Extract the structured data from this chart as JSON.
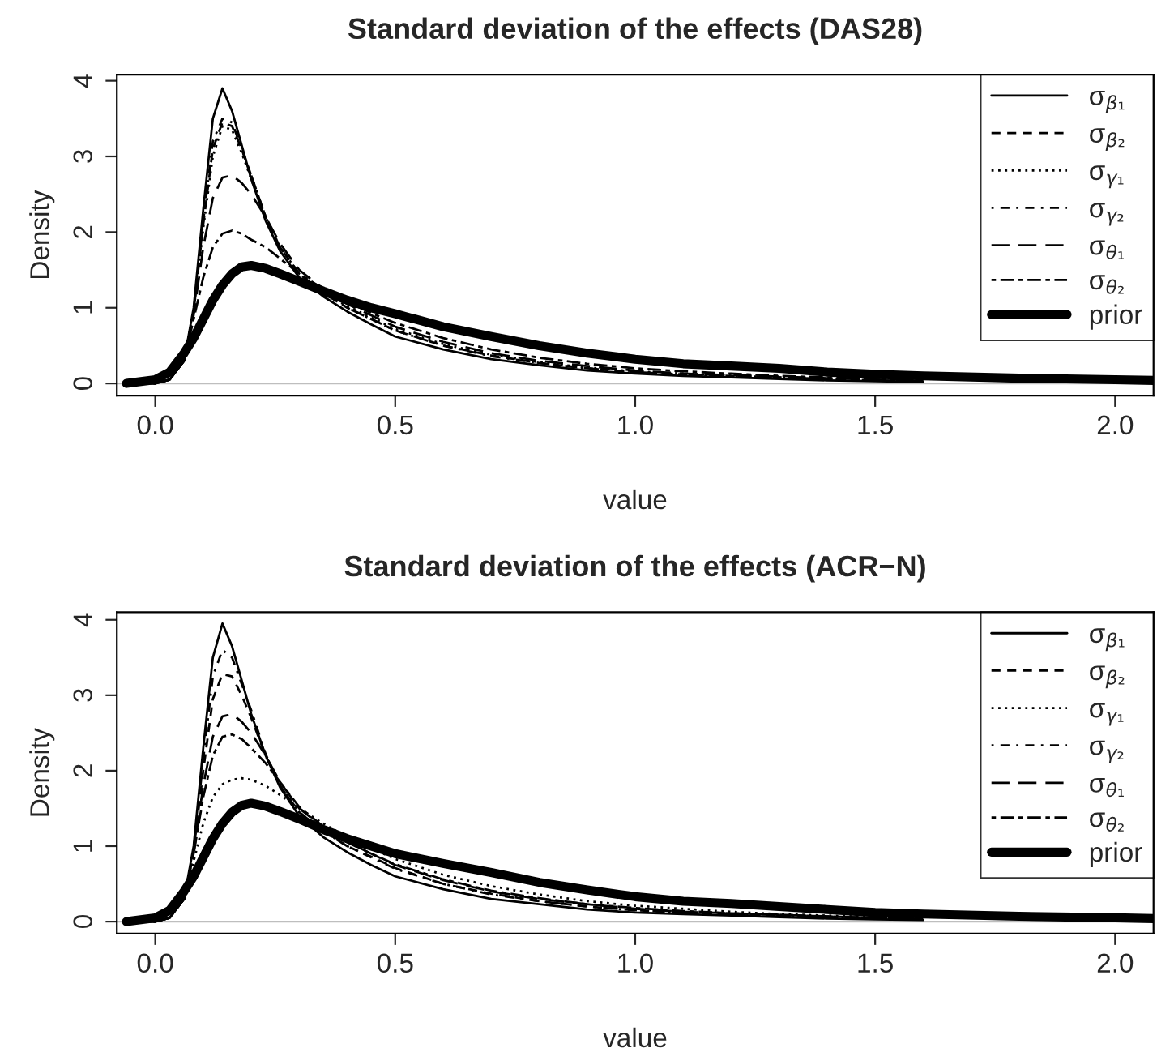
{
  "chart_data": [
    {
      "type": "line",
      "title": "Standard deviation of the effects (DAS28)",
      "xlabel": "value",
      "ylabel": "Density",
      "xlim": [
        -0.08,
        2.08
      ],
      "xticks": [
        {
          "value": 0,
          "label": "0.0"
        },
        {
          "value": 0.5,
          "label": "0.5"
        },
        {
          "value": 1,
          "label": "1.0"
        },
        {
          "value": 1.5,
          "label": "1.5"
        },
        {
          "value": 2,
          "label": "2.0"
        }
      ],
      "ylim": [
        -0.16,
        4.08
      ],
      "yticks": [
        0,
        1,
        2,
        3,
        4
      ],
      "grid": false,
      "legend": "top right",
      "ref_lines": [
        {
          "axis": "y",
          "value": 0,
          "color": "#bebebe"
        }
      ],
      "x": [
        -0.06,
        0,
        0.03,
        0.06,
        0.08,
        0.1,
        0.12,
        0.14,
        0.16,
        0.18,
        0.2,
        0.23,
        0.26,
        0.3,
        0.35,
        0.4,
        0.45,
        0.5,
        0.6,
        0.7,
        0.8,
        0.9,
        1.0,
        1.1,
        1.2,
        1.3,
        1.4,
        1.5,
        1.6
      ],
      "series": [
        {
          "name": "σ$_{β₁}$",
          "color": "#000000",
          "line_style": "solid",
          "values": [
            0,
            0,
            0.05,
            0.3,
            1.0,
            2.3,
            3.5,
            3.9,
            3.6,
            3.15,
            2.7,
            2.15,
            1.75,
            1.4,
            1.15,
            0.95,
            0.78,
            0.62,
            0.45,
            0.32,
            0.24,
            0.17,
            0.13,
            0.1,
            0.08,
            0.06,
            0.04,
            0.03,
            0.02
          ]
        },
        {
          "name": "σ$_{β₂}$",
          "color": "#000000",
          "line_style": "dashed",
          "values": [
            0,
            0,
            0.05,
            0.3,
            0.95,
            2.1,
            3.1,
            3.45,
            3.4,
            3.1,
            2.75,
            2.2,
            1.8,
            1.45,
            1.2,
            1.0,
            0.85,
            0.7,
            0.5,
            0.37,
            0.27,
            0.2,
            0.15,
            0.12,
            0.1,
            0.08,
            0.06,
            0.04,
            0.03
          ]
        },
        {
          "name": "σ$_{γ₁}$",
          "color": "#000000",
          "line_style": "dotted",
          "values": [
            0,
            0,
            0.05,
            0.3,
            0.95,
            2.05,
            3.0,
            3.4,
            3.35,
            3.05,
            2.7,
            2.2,
            1.8,
            1.45,
            1.2,
            1.02,
            0.87,
            0.72,
            0.52,
            0.38,
            0.28,
            0.21,
            0.16,
            0.13,
            0.1,
            0.08,
            0.06,
            0.05,
            0.03
          ]
        },
        {
          "name": "σ$_{γ₂}$",
          "color": "#000000",
          "line_style": "dashdot",
          "values": [
            0,
            0,
            0.05,
            0.3,
            0.95,
            2.15,
            3.2,
            3.5,
            3.45,
            3.1,
            2.75,
            2.2,
            1.8,
            1.45,
            1.2,
            1.0,
            0.85,
            0.7,
            0.5,
            0.36,
            0.27,
            0.2,
            0.15,
            0.12,
            0.1,
            0.08,
            0.06,
            0.04,
            0.03
          ]
        },
        {
          "name": "σ$_{θ₁}$",
          "color": "#000000",
          "line_style": "longdash",
          "values": [
            0,
            0,
            0.05,
            0.3,
            0.9,
            1.8,
            2.45,
            2.72,
            2.75,
            2.65,
            2.5,
            2.2,
            1.85,
            1.5,
            1.25,
            1.05,
            0.9,
            0.75,
            0.55,
            0.4,
            0.3,
            0.23,
            0.17,
            0.13,
            0.11,
            0.09,
            0.07,
            0.05,
            0.04
          ]
        },
        {
          "name": "σ$_{θ₂}$",
          "color": "#000000",
          "line_style": "twodash",
          "values": [
            0,
            0,
            0.05,
            0.3,
            0.85,
            1.4,
            1.8,
            1.98,
            2.02,
            1.98,
            1.9,
            1.8,
            1.65,
            1.45,
            1.25,
            1.08,
            0.93,
            0.8,
            0.6,
            0.45,
            0.34,
            0.26,
            0.2,
            0.16,
            0.13,
            0.1,
            0.08,
            0.06,
            0.05
          ]
        },
        {
          "name": "prior",
          "color": "#000000",
          "line_style": "solid",
          "x": [
            -0.06,
            0,
            0.03,
            0.06,
            0.08,
            0.1,
            0.12,
            0.14,
            0.16,
            0.18,
            0.2,
            0.23,
            0.26,
            0.3,
            0.35,
            0.4,
            0.45,
            0.5,
            0.6,
            0.7,
            0.8,
            0.9,
            1.0,
            1.1,
            1.2,
            1.3,
            1.4,
            1.5,
            1.6,
            1.8,
            2.0,
            2.08
          ],
          "values": [
            0,
            0.05,
            0.15,
            0.4,
            0.6,
            0.85,
            1.1,
            1.3,
            1.45,
            1.54,
            1.56,
            1.52,
            1.45,
            1.35,
            1.22,
            1.1,
            1.0,
            0.92,
            0.75,
            0.62,
            0.5,
            0.4,
            0.32,
            0.26,
            0.23,
            0.2,
            0.15,
            0.12,
            0.1,
            0.07,
            0.05,
            0.04
          ]
        }
      ]
    },
    {
      "type": "line",
      "title": "Standard deviation of the effects (ACR−N)",
      "xlabel": "value",
      "ylabel": "Density",
      "xlim": [
        -0.08,
        2.08
      ],
      "xticks": [
        {
          "value": 0,
          "label": "0.0"
        },
        {
          "value": 0.5,
          "label": "0.5"
        },
        {
          "value": 1,
          "label": "1.0"
        },
        {
          "value": 1.5,
          "label": "1.5"
        },
        {
          "value": 2,
          "label": "2.0"
        }
      ],
      "ylim": [
        -0.16,
        4.1
      ],
      "yticks": [
        0,
        1,
        2,
        3,
        4
      ],
      "grid": false,
      "legend": "top right",
      "ref_lines": [
        {
          "axis": "y",
          "value": 0,
          "color": "#bebebe"
        }
      ],
      "x": [
        -0.06,
        0,
        0.03,
        0.06,
        0.08,
        0.1,
        0.12,
        0.14,
        0.16,
        0.18,
        0.2,
        0.23,
        0.26,
        0.3,
        0.35,
        0.4,
        0.45,
        0.5,
        0.6,
        0.7,
        0.8,
        0.9,
        1.0,
        1.1,
        1.2,
        1.3,
        1.4,
        1.5,
        1.6
      ],
      "series": [
        {
          "name": "σ$_{β₁}$",
          "color": "#000000",
          "line_style": "solid",
          "values": [
            0,
            0,
            0.05,
            0.3,
            1.0,
            2.3,
            3.5,
            3.95,
            3.65,
            3.2,
            2.75,
            2.2,
            1.78,
            1.4,
            1.12,
            0.92,
            0.75,
            0.6,
            0.43,
            0.3,
            0.23,
            0.16,
            0.12,
            0.1,
            0.08,
            0.06,
            0.04,
            0.03,
            0.02
          ]
        },
        {
          "name": "σ$_{β₂}$",
          "color": "#000000",
          "line_style": "dashed",
          "values": [
            0,
            0,
            0.05,
            0.3,
            0.95,
            2.0,
            2.95,
            3.28,
            3.25,
            3.0,
            2.7,
            2.2,
            1.8,
            1.45,
            1.2,
            1.0,
            0.86,
            0.71,
            0.5,
            0.37,
            0.27,
            0.2,
            0.15,
            0.12,
            0.1,
            0.08,
            0.06,
            0.04,
            0.03
          ]
        },
        {
          "name": "σ$_{γ₁}$",
          "color": "#000000",
          "line_style": "dotted",
          "values": [
            0,
            0,
            0.05,
            0.3,
            0.8,
            1.3,
            1.65,
            1.82,
            1.88,
            1.9,
            1.88,
            1.8,
            1.68,
            1.5,
            1.3,
            1.12,
            0.97,
            0.83,
            0.62,
            0.47,
            0.36,
            0.27,
            0.21,
            0.17,
            0.13,
            0.1,
            0.08,
            0.06,
            0.05
          ]
        },
        {
          "name": "σ$_{γ₂}$",
          "color": "#000000",
          "line_style": "dashdot",
          "values": [
            0,
            0,
            0.05,
            0.3,
            0.95,
            2.15,
            3.25,
            3.6,
            3.5,
            3.15,
            2.8,
            2.22,
            1.8,
            1.45,
            1.2,
            1.0,
            0.85,
            0.7,
            0.5,
            0.36,
            0.27,
            0.2,
            0.15,
            0.12,
            0.1,
            0.08,
            0.06,
            0.04,
            0.03
          ]
        },
        {
          "name": "σ$_{θ₁}$",
          "color": "#000000",
          "line_style": "longdash",
          "values": [
            0,
            0,
            0.05,
            0.3,
            0.9,
            1.8,
            2.45,
            2.72,
            2.75,
            2.65,
            2.5,
            2.2,
            1.85,
            1.5,
            1.25,
            1.05,
            0.9,
            0.75,
            0.55,
            0.4,
            0.3,
            0.23,
            0.17,
            0.13,
            0.11,
            0.09,
            0.07,
            0.05,
            0.04
          ]
        },
        {
          "name": "σ$_{θ₂}$",
          "color": "#000000",
          "line_style": "twodash",
          "values": [
            0,
            0,
            0.05,
            0.3,
            0.9,
            1.65,
            2.2,
            2.45,
            2.48,
            2.42,
            2.3,
            2.1,
            1.85,
            1.52,
            1.26,
            1.06,
            0.9,
            0.76,
            0.56,
            0.41,
            0.31,
            0.23,
            0.18,
            0.14,
            0.11,
            0.09,
            0.07,
            0.05,
            0.04
          ]
        },
        {
          "name": "prior",
          "color": "#000000",
          "line_style": "solid",
          "x": [
            -0.06,
            0,
            0.03,
            0.06,
            0.08,
            0.1,
            0.12,
            0.14,
            0.16,
            0.18,
            0.2,
            0.23,
            0.26,
            0.3,
            0.35,
            0.4,
            0.45,
            0.5,
            0.6,
            0.7,
            0.8,
            0.9,
            1.0,
            1.1,
            1.2,
            1.3,
            1.4,
            1.5,
            1.6,
            1.8,
            2.0,
            2.08
          ],
          "values": [
            0,
            0.05,
            0.15,
            0.4,
            0.6,
            0.85,
            1.1,
            1.3,
            1.45,
            1.54,
            1.57,
            1.53,
            1.46,
            1.36,
            1.22,
            1.1,
            1.0,
            0.9,
            0.77,
            0.65,
            0.52,
            0.42,
            0.33,
            0.27,
            0.24,
            0.2,
            0.16,
            0.12,
            0.1,
            0.07,
            0.05,
            0.04
          ]
        }
      ]
    }
  ]
}
